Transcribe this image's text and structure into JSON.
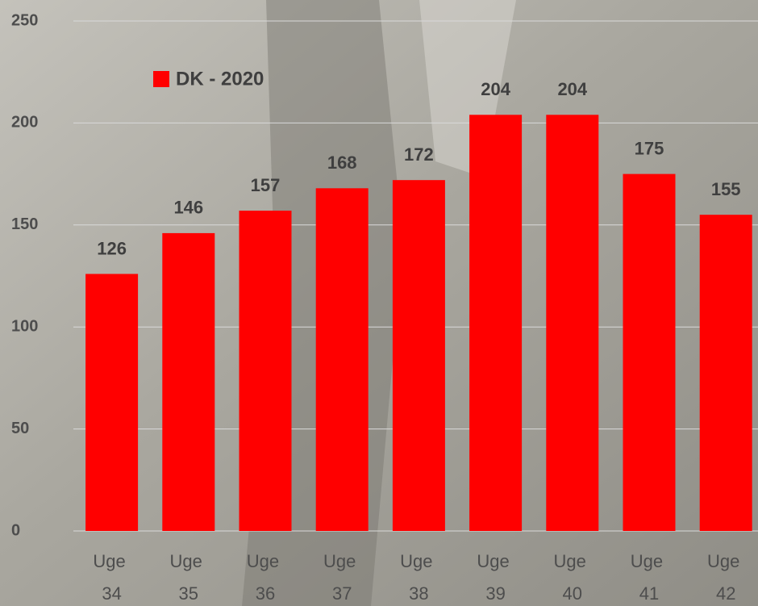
{
  "chart_data": {
    "type": "bar",
    "categories": [
      "Uge 34",
      "Uge 35",
      "Uge 36",
      "Uge 37",
      "Uge 38",
      "Uge 39",
      "Uge 40",
      "Uge 41",
      "Uge 42"
    ],
    "series": [
      {
        "name": "DK - 2020",
        "color": "#ff0000",
        "values": [
          126,
          146,
          157,
          168,
          172,
          204,
          204,
          175,
          155
        ]
      }
    ],
    "ylim": [
      0,
      250
    ],
    "yticks": [
      0,
      50,
      100,
      150,
      200,
      250
    ],
    "grid": true,
    "legend": "top-left"
  }
}
